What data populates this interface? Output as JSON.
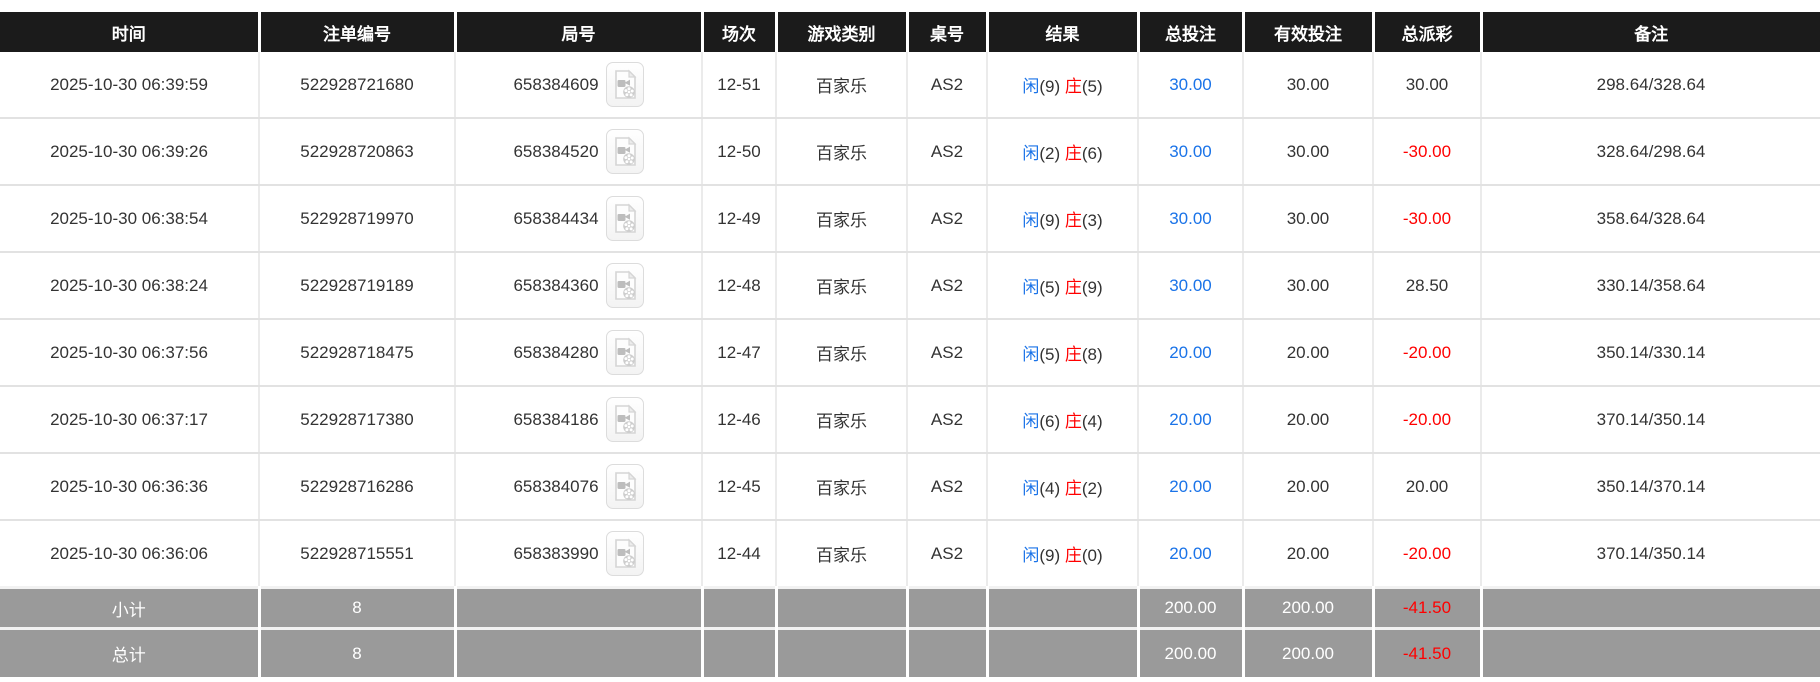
{
  "colors": {
    "header_bg": "#1b1b1b",
    "header_text": "#ffffff",
    "body_text": "#333333",
    "link_blue": "#1a73e8",
    "negative_red": "#ff0000",
    "footer_bg": "#9a9a9a",
    "footer_text": "#ffffff",
    "row_border": "#e2e2e2"
  },
  "table": {
    "columns": [
      {
        "key": "time",
        "label": "时间"
      },
      {
        "key": "bet_id",
        "label": "注单编号"
      },
      {
        "key": "round_id",
        "label": "局号"
      },
      {
        "key": "session",
        "label": "场次"
      },
      {
        "key": "game_type",
        "label": "游戏类别"
      },
      {
        "key": "table_no",
        "label": "桌号"
      },
      {
        "key": "result",
        "label": "结果"
      },
      {
        "key": "total_bet",
        "label": "总投注"
      },
      {
        "key": "valid_bet",
        "label": "有效投注"
      },
      {
        "key": "payout",
        "label": "总派彩"
      },
      {
        "key": "remark",
        "label": "备注"
      }
    ],
    "result_labels": {
      "player": "闲",
      "banker": "庄"
    },
    "icons": {
      "round_video": "video-file-icon"
    },
    "rows": [
      {
        "time": "2025-10-30 06:39:59",
        "bet_id": "522928721680",
        "round_id": "658384609",
        "session": "12-51",
        "game_type": "百家乐",
        "table_no": "AS2",
        "result": {
          "player": "9",
          "banker": "5"
        },
        "total_bet": "30.00",
        "valid_bet": "30.00",
        "payout": "30.00",
        "remark": "298.64/328.64"
      },
      {
        "time": "2025-10-30 06:39:26",
        "bet_id": "522928720863",
        "round_id": "658384520",
        "session": "12-50",
        "game_type": "百家乐",
        "table_no": "AS2",
        "result": {
          "player": "2",
          "banker": "6"
        },
        "total_bet": "30.00",
        "valid_bet": "30.00",
        "payout": "-30.00",
        "remark": "328.64/298.64"
      },
      {
        "time": "2025-10-30 06:38:54",
        "bet_id": "522928719970",
        "round_id": "658384434",
        "session": "12-49",
        "game_type": "百家乐",
        "table_no": "AS2",
        "result": {
          "player": "9",
          "banker": "3"
        },
        "total_bet": "30.00",
        "valid_bet": "30.00",
        "payout": "-30.00",
        "remark": "358.64/328.64"
      },
      {
        "time": "2025-10-30 06:38:24",
        "bet_id": "522928719189",
        "round_id": "658384360",
        "session": "12-48",
        "game_type": "百家乐",
        "table_no": "AS2",
        "result": {
          "player": "5",
          "banker": "9"
        },
        "total_bet": "30.00",
        "valid_bet": "30.00",
        "payout": "28.50",
        "remark": "330.14/358.64"
      },
      {
        "time": "2025-10-30 06:37:56",
        "bet_id": "522928718475",
        "round_id": "658384280",
        "session": "12-47",
        "game_type": "百家乐",
        "table_no": "AS2",
        "result": {
          "player": "5",
          "banker": "8"
        },
        "total_bet": "20.00",
        "valid_bet": "20.00",
        "payout": "-20.00",
        "remark": "350.14/330.14"
      },
      {
        "time": "2025-10-30 06:37:17",
        "bet_id": "522928717380",
        "round_id": "658384186",
        "session": "12-46",
        "game_type": "百家乐",
        "table_no": "AS2",
        "result": {
          "player": "6",
          "banker": "4"
        },
        "total_bet": "20.00",
        "valid_bet": "20.00",
        "payout": "-20.00",
        "remark": "370.14/350.14"
      },
      {
        "time": "2025-10-30 06:36:36",
        "bet_id": "522928716286",
        "round_id": "658384076",
        "session": "12-45",
        "game_type": "百家乐",
        "table_no": "AS2",
        "result": {
          "player": "4",
          "banker": "2"
        },
        "total_bet": "20.00",
        "valid_bet": "20.00",
        "payout": "20.00",
        "remark": "350.14/370.14"
      },
      {
        "time": "2025-10-30 06:36:06",
        "bet_id": "522928715551",
        "round_id": "658383990",
        "session": "12-44",
        "game_type": "百家乐",
        "table_no": "AS2",
        "result": {
          "player": "9",
          "banker": "0"
        },
        "total_bet": "20.00",
        "valid_bet": "20.00",
        "payout": "-20.00",
        "remark": "370.14/350.14"
      }
    ],
    "subtotal": {
      "label": "小计",
      "count": "8",
      "total_bet": "200.00",
      "valid_bet": "200.00",
      "payout": "-41.50"
    },
    "total": {
      "label": "总计",
      "count": "8",
      "total_bet": "200.00",
      "valid_bet": "200.00",
      "payout": "-41.50"
    }
  }
}
